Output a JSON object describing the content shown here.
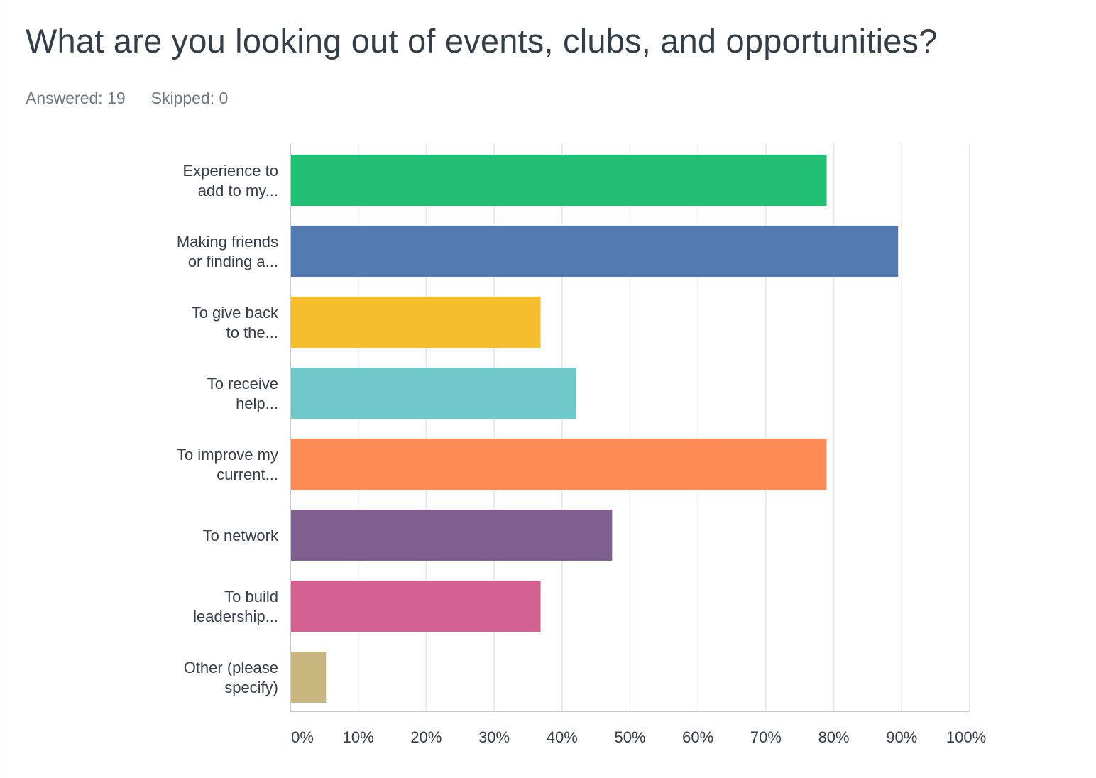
{
  "title": "What are you looking out of events, clubs, and opportunities?",
  "stats": {
    "answered": "Answered: 19",
    "skipped": "Skipped: 0"
  },
  "chart_data": {
    "type": "bar",
    "orientation": "horizontal",
    "categories": [
      [
        "Experience to",
        "add to my..."
      ],
      [
        "Making friends",
        "or finding a..."
      ],
      [
        "To give back",
        "to the..."
      ],
      [
        "To receive",
        "help..."
      ],
      [
        "To improve my",
        "current..."
      ],
      [
        "To network"
      ],
      [
        "To build",
        "leadership..."
      ],
      [
        "Other (please",
        "specify)"
      ]
    ],
    "values": [
      78.95,
      89.47,
      36.84,
      42.11,
      78.95,
      47.37,
      36.84,
      5.26
    ],
    "colors": [
      "#21bf73",
      "#537bb2",
      "#f6bd2e",
      "#71c8cb",
      "#fd8b55",
      "#7e5f8f",
      "#d36191",
      "#c9b67e"
    ],
    "xlim": [
      0,
      100
    ],
    "xticks": [
      "0%",
      "10%",
      "20%",
      "30%",
      "40%",
      "50%",
      "60%",
      "70%",
      "80%",
      "90%",
      "100%"
    ],
    "grid": true,
    "legend": "none"
  }
}
